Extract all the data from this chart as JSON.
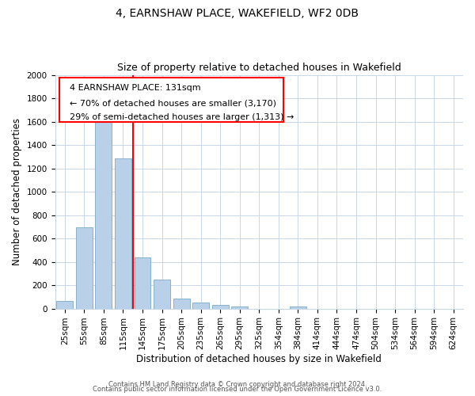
{
  "title": "4, EARNSHAW PLACE, WAKEFIELD, WF2 0DB",
  "subtitle": "Size of property relative to detached houses in Wakefield",
  "xlabel": "Distribution of detached houses by size in Wakefield",
  "ylabel": "Number of detached properties",
  "bar_color": "#b8d0e8",
  "bar_edge_color": "#7aaac8",
  "categories": [
    "25sqm",
    "55sqm",
    "85sqm",
    "115sqm",
    "145sqm",
    "175sqm",
    "205sqm",
    "235sqm",
    "265sqm",
    "295sqm",
    "325sqm",
    "354sqm",
    "384sqm",
    "414sqm",
    "444sqm",
    "474sqm",
    "504sqm",
    "534sqm",
    "564sqm",
    "594sqm",
    "624sqm"
  ],
  "values": [
    65,
    695,
    1635,
    1285,
    435,
    250,
    85,
    50,
    30,
    20,
    0,
    0,
    15,
    0,
    0,
    0,
    0,
    0,
    0,
    0,
    0
  ],
  "ylim": [
    0,
    2000
  ],
  "yticks": [
    0,
    200,
    400,
    600,
    800,
    1000,
    1200,
    1400,
    1600,
    1800,
    2000
  ],
  "redline_x": 3.53,
  "ann_line1": "4 EARNSHAW PLACE: 131sqm",
  "ann_line2": "← 70% of detached houses are smaller (3,170)",
  "ann_line3": "29% of semi-detached houses are larger (1,313) →",
  "footer1": "Contains HM Land Registry data © Crown copyright and database right 2024.",
  "footer2": "Contains public sector information licensed under the Open Government Licence v3.0.",
  "background_color": "#ffffff",
  "grid_color": "#c8d8e8",
  "title_fontsize": 10,
  "subtitle_fontsize": 9,
  "axis_label_fontsize": 8.5,
  "tick_fontsize": 7.5,
  "footer_fontsize": 6,
  "ann_fontsize": 8
}
